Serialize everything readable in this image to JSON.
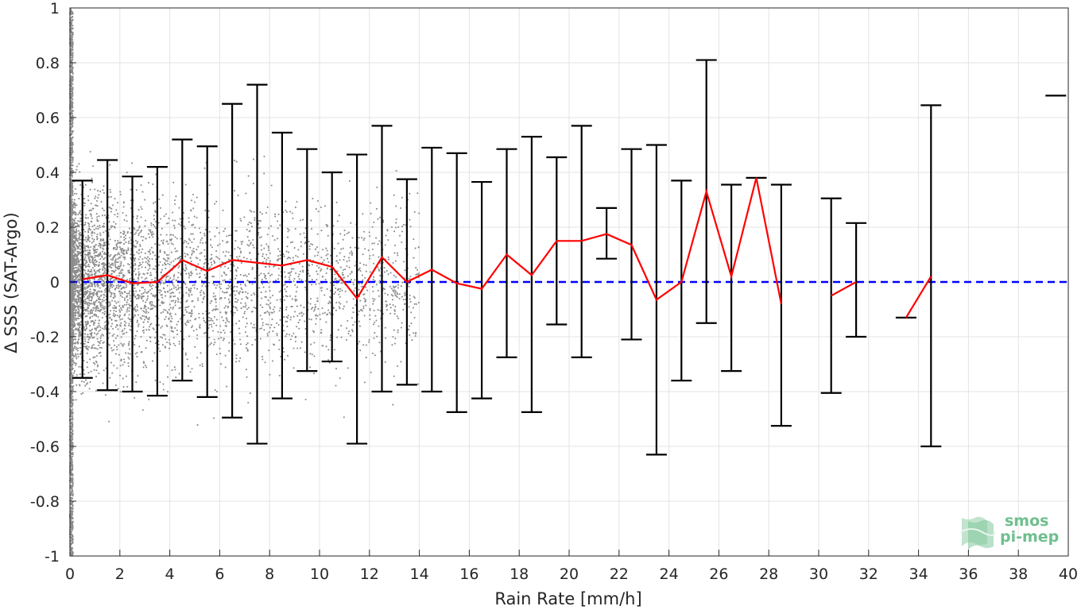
{
  "chart_data": {
    "type": "scatter",
    "xlabel": "Rain Rate [mm/h]",
    "ylabel": "Δ SSS (SAT-Argo)",
    "xlim": [
      0,
      40
    ],
    "ylim": [
      -1,
      1
    ],
    "xticks": [
      0,
      2,
      4,
      6,
      8,
      10,
      12,
      14,
      16,
      18,
      20,
      22,
      24,
      26,
      28,
      30,
      32,
      34,
      36,
      38,
      40
    ],
    "xtick_labels": [
      "0",
      "2",
      "4",
      "6",
      "8",
      "10",
      "12",
      "14",
      "16",
      "18",
      "20",
      "22",
      "24",
      "26",
      "28",
      "30",
      "32",
      "34",
      "36",
      "38",
      "40"
    ],
    "yticks": [
      -1,
      -0.8,
      -0.6,
      -0.4,
      -0.2,
      0,
      0.2,
      0.4,
      0.6,
      0.8,
      1
    ],
    "ytick_labels": [
      "-1",
      "-0.8",
      "-0.6",
      "-0.4",
      "-0.2",
      "0",
      "0.2",
      "0.4",
      "0.6",
      "0.8",
      "1"
    ],
    "grid": true,
    "reference_line": {
      "y": 0,
      "style": "dashed",
      "color": "#0000ff"
    },
    "scatter_series": {
      "color": "#8c8c8c",
      "description_points": "individual matchups"
    },
    "binned_series": {
      "color_line": "#ff0000",
      "color_errorbar": "#000000",
      "x": [
        0.5,
        1.5,
        2.5,
        3.5,
        4.5,
        5.5,
        6.5,
        7.5,
        8.5,
        9.5,
        10.5,
        11.5,
        12.5,
        13.5,
        14.5,
        15.5,
        16.5,
        17.5,
        18.5,
        19.5,
        20.5,
        21.5,
        22.5,
        23.5,
        24.5,
        25.5,
        26.5,
        27.5,
        28.5,
        30.5,
        31.5,
        33.5,
        34.5,
        39.5
      ],
      "mean": [
        0.01,
        0.025,
        -0.005,
        0.0,
        0.08,
        0.04,
        0.08,
        0.07,
        0.06,
        0.08,
        0.055,
        -0.06,
        0.09,
        0.0,
        0.045,
        -0.005,
        -0.025,
        0.1,
        0.025,
        0.15,
        0.15,
        0.175,
        0.135,
        -0.065,
        0.0,
        0.33,
        0.02,
        0.38,
        -0.08,
        -0.05,
        0.0,
        -0.13,
        0.02,
        0.68
      ],
      "lower": [
        -0.35,
        -0.395,
        -0.4,
        -0.415,
        -0.36,
        -0.42,
        -0.495,
        -0.59,
        -0.425,
        -0.325,
        -0.29,
        -0.59,
        -0.4,
        -0.375,
        -0.4,
        -0.475,
        -0.425,
        -0.275,
        -0.475,
        -0.155,
        -0.275,
        0.085,
        -0.21,
        -0.63,
        -0.36,
        -0.15,
        -0.325,
        0.38,
        -0.525,
        -0.405,
        -0.2,
        -0.13,
        -0.6,
        0.68
      ],
      "upper": [
        0.37,
        0.445,
        0.385,
        0.42,
        0.52,
        0.495,
        0.65,
        0.72,
        0.545,
        0.485,
        0.4,
        0.465,
        0.57,
        0.375,
        0.49,
        0.47,
        0.365,
        0.485,
        0.53,
        0.455,
        0.57,
        0.27,
        0.485,
        0.5,
        0.37,
        0.81,
        0.355,
        0.38,
        0.355,
        0.305,
        0.215,
        -0.13,
        0.645,
        0.68
      ],
      "line_segments": [
        [
          0,
          28
        ],
        [
          29,
          30
        ],
        [
          31,
          32
        ]
      ]
    }
  },
  "logo": {
    "line1": "smos",
    "line2": "pi-mep"
  }
}
